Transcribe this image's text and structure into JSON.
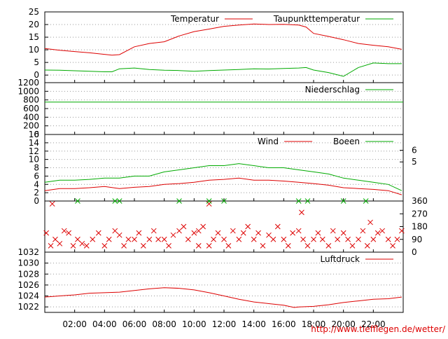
{
  "credit_url": "http://www.tiefflegen.de/wetter/",
  "colors": {
    "red": "#dd0000",
    "green": "#00aa00",
    "grid": "#999999",
    "axis": "#000000"
  },
  "chart_data": [
    {
      "id": "temperature",
      "type": "line",
      "ylim": [
        -3,
        25
      ],
      "yticks": [
        "25",
        "20",
        "15",
        "10",
        "5",
        "0"
      ],
      "ytick_values": [
        25,
        20,
        15,
        10,
        5,
        0
      ],
      "legend_position": "top-right",
      "x": [
        0,
        1,
        2,
        3,
        4,
        4.5,
        5,
        6,
        7,
        8,
        9,
        10,
        11,
        12,
        13,
        14,
        15,
        16,
        17,
        17.5,
        18,
        19,
        20,
        21,
        22,
        23,
        23.9
      ],
      "series": [
        {
          "name": "Temperatur",
          "color": "red",
          "values": [
            10.5,
            9.8,
            9.3,
            8.8,
            8.2,
            7.9,
            8.1,
            11.2,
            12.5,
            13.2,
            15.5,
            17.2,
            18.2,
            19.3,
            19.8,
            20.2,
            20.0,
            20.1,
            19.8,
            19.0,
            16.5,
            15.3,
            14.0,
            12.5,
            11.8,
            11.2,
            10.2
          ]
        },
        {
          "name": "Taupunkttemperatur",
          "color": "green",
          "values": [
            2.0,
            1.9,
            1.7,
            1.5,
            1.3,
            1.3,
            2.5,
            2.8,
            2.2,
            1.9,
            1.8,
            1.5,
            1.8,
            2.0,
            2.2,
            2.5,
            2.4,
            2.6,
            2.8,
            3.0,
            2.0,
            1.0,
            -0.5,
            3.0,
            4.8,
            4.5,
            4.5
          ]
        }
      ]
    },
    {
      "id": "precipitation",
      "type": "line",
      "ylim": [
        0,
        1200
      ],
      "yticks": [
        "1200",
        "1000",
        "800",
        "600",
        "400",
        "200",
        "0"
      ],
      "ytick_values": [
        1200,
        1000,
        800,
        600,
        400,
        200,
        0
      ],
      "legend_position": "top-right",
      "x": [
        0,
        24
      ],
      "series": [
        {
          "name": "Niederschlag",
          "color": "green",
          "values": [
            750,
            750
          ]
        }
      ]
    },
    {
      "id": "wind",
      "type": "line",
      "ylim": [
        0,
        16
      ],
      "yticks": [
        "16",
        "14",
        "12",
        "10",
        "8",
        "6",
        "4",
        "2",
        "0"
      ],
      "ytick_values": [
        16,
        14,
        12,
        10,
        8,
        6,
        4,
        2,
        0
      ],
      "y2ticks": [
        "6",
        "5"
      ],
      "y2tick_values": [
        12.2,
        9.4
      ],
      "legend_position": "top-right",
      "x": [
        0,
        1,
        2,
        3,
        4,
        5,
        6,
        7,
        8,
        9,
        10,
        11,
        12,
        13,
        14,
        15,
        16,
        17,
        18,
        19,
        20,
        21,
        22,
        23,
        23.9
      ],
      "series": [
        {
          "name": "Wind",
          "color": "red",
          "values": [
            2.5,
            3.0,
            3.0,
            3.2,
            3.5,
            3.0,
            3.3,
            3.5,
            4.0,
            4.2,
            4.5,
            5.0,
            5.2,
            5.5,
            5.0,
            5.0,
            4.8,
            4.5,
            4.2,
            3.8,
            3.2,
            3.0,
            2.8,
            2.5,
            1.5
          ]
        },
        {
          "name": "Boeen",
          "color": "green",
          "values": [
            4.5,
            5.0,
            5.0,
            5.2,
            5.5,
            5.5,
            6.0,
            6.0,
            7.0,
            7.5,
            8.0,
            8.5,
            8.5,
            9.0,
            8.5,
            8.0,
            8.0,
            7.5,
            7.0,
            6.5,
            5.5,
            5.0,
            4.5,
            4.0,
            2.5
          ]
        }
      ]
    },
    {
      "id": "wind-direction",
      "type": "scatter",
      "ylim": [
        0,
        360
      ],
      "y2ticks": [
        "360",
        "270",
        "180",
        "90",
        "0"
      ],
      "y2tick_values": [
        360,
        270,
        180,
        90,
        0
      ],
      "marker": "x",
      "series": [
        {
          "name": "",
          "color": "red",
          "x": [
            0.1,
            0.4,
            0.7,
            1.0,
            1.3,
            1.6,
            1.9,
            2.2,
            2.5,
            2.8,
            3.2,
            3.6,
            4.0,
            4.3,
            4.7,
            5.0,
            5.3,
            5.6,
            6.0,
            6.3,
            6.6,
            7.0,
            7.3,
            7.6,
            8.0,
            8.3,
            8.6,
            9.0,
            9.3,
            9.6,
            10.0,
            10.3,
            10.6,
            11.0,
            11.3,
            11.6,
            12.0,
            12.3,
            12.6,
            13.0,
            13.3,
            13.6,
            14.0,
            14.3,
            14.6,
            15.0,
            15.3,
            15.6,
            16.0,
            16.3,
            16.6,
            17.0,
            17.3,
            17.6,
            18.0,
            18.3,
            18.6,
            19.0,
            19.3,
            19.6,
            20.0,
            20.3,
            20.6,
            21.0,
            21.3,
            21.6,
            22.0,
            22.3,
            22.6,
            23.0,
            23.3,
            23.6,
            23.9,
            0.5,
            11.0,
            17.2,
            21.8,
            10.3
          ],
          "y": [
            135,
            45,
            90,
            60,
            150,
            135,
            45,
            90,
            60,
            45,
            90,
            135,
            45,
            90,
            150,
            120,
            45,
            90,
            90,
            135,
            45,
            90,
            150,
            90,
            90,
            45,
            120,
            150,
            180,
            90,
            135,
            45,
            180,
            45,
            90,
            135,
            90,
            45,
            150,
            90,
            135,
            180,
            90,
            135,
            45,
            120,
            90,
            180,
            90,
            45,
            135,
            150,
            90,
            45,
            90,
            135,
            90,
            45,
            150,
            90,
            135,
            90,
            45,
            90,
            150,
            45,
            90,
            135,
            150,
            90,
            45,
            90,
            150,
            340,
            340,
            280,
            210,
            150
          ]
        },
        {
          "name": "",
          "color": "green",
          "x": [
            2.2,
            4.7,
            5.0,
            9.0,
            11.0,
            12.0,
            17.0,
            17.6,
            20.0,
            21.5
          ],
          "y": [
            360,
            360,
            360,
            360,
            360,
            360,
            360,
            360,
            360,
            360
          ]
        }
      ]
    },
    {
      "id": "pressure",
      "type": "line",
      "ylim": [
        1021,
        1032
      ],
      "yticks": [
        "1032",
        "1030",
        "1028",
        "1026",
        "1024",
        "1022"
      ],
      "ytick_values": [
        1032,
        1030,
        1028,
        1026,
        1024,
        1022
      ],
      "legend_position": "top-right",
      "x": [
        0,
        1,
        2,
        3,
        4,
        5,
        6,
        7,
        8,
        9,
        10,
        11,
        12,
        13,
        14,
        15,
        16,
        16.7,
        17,
        18,
        19,
        20,
        21,
        22,
        23,
        23.9
      ],
      "series": [
        {
          "name": "Luftdruck",
          "color": "red",
          "values": [
            1023.8,
            1024.0,
            1024.2,
            1024.5,
            1024.6,
            1024.7,
            1025.0,
            1025.3,
            1025.5,
            1025.4,
            1025.1,
            1024.6,
            1024.0,
            1023.4,
            1022.9,
            1022.6,
            1022.3,
            1021.9,
            1022.0,
            1022.1,
            1022.4,
            1022.8,
            1023.1,
            1023.4,
            1023.5,
            1023.8
          ]
        }
      ]
    }
  ],
  "x_axis": {
    "min": 0,
    "max": 24,
    "ticks": [
      2,
      4,
      6,
      8,
      10,
      12,
      14,
      16,
      18,
      20,
      22
    ],
    "tick_labels": [
      "02:00",
      "04:00",
      "06:00",
      "08:00",
      "10:00",
      "12:00",
      "14:00",
      "16:00",
      "18:00",
      "20:00",
      "22:00"
    ]
  }
}
